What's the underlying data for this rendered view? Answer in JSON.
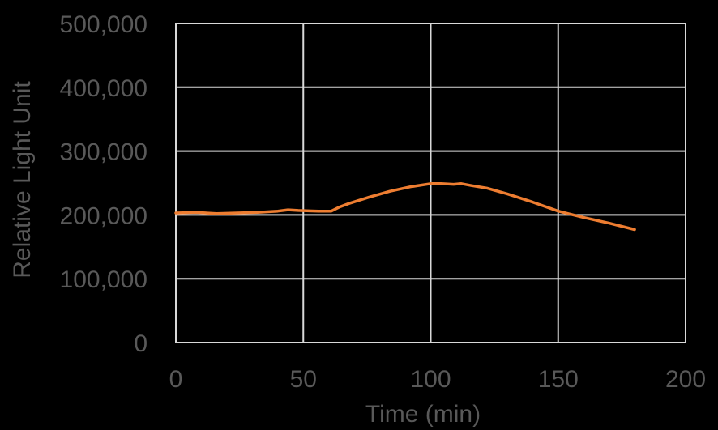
{
  "chart_data": {
    "type": "line",
    "title": "",
    "xlabel": "Time (min)",
    "ylabel": "Relative Light Unit",
    "xlim": [
      0,
      200
    ],
    "ylim": [
      0,
      500000
    ],
    "x_ticks": [
      "0",
      "50",
      "100",
      "150",
      "200"
    ],
    "y_ticks": [
      "0",
      "100,000",
      "200,000",
      "300,000",
      "400,000",
      "500,000"
    ],
    "grid": true,
    "legend": null,
    "series": [
      {
        "name": "RLU",
        "color": "#ED7D31",
        "x": [
          0,
          8,
          16,
          24,
          32,
          40,
          44,
          48,
          56,
          61,
          64,
          68,
          76,
          84,
          92,
          100,
          104,
          109,
          112,
          116,
          122,
          130,
          140,
          150,
          156,
          160,
          170,
          180
        ],
        "y": [
          203000,
          204000,
          202000,
          203000,
          204000,
          206000,
          208000,
          207000,
          206000,
          206000,
          212000,
          218000,
          228000,
          237000,
          244000,
          249000,
          249000,
          248000,
          249000,
          246000,
          242000,
          233000,
          220000,
          206000,
          200000,
          196000,
          187000,
          177000
        ]
      }
    ]
  }
}
